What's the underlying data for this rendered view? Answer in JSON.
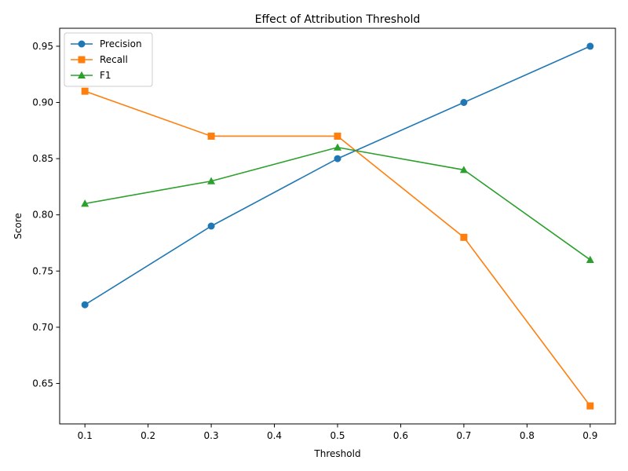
{
  "chart_data": {
    "type": "line",
    "title": "Effect of Attribution Threshold",
    "xlabel": "Threshold",
    "ylabel": "Score",
    "x": [
      0.1,
      0.3,
      0.5,
      0.7,
      0.9
    ],
    "xlim": [
      0.06,
      0.94
    ],
    "ylim": [
      0.614,
      0.966
    ],
    "xticks": [
      "0.1",
      "0.2",
      "0.3",
      "0.4",
      "0.5",
      "0.6",
      "0.7",
      "0.8",
      "0.9"
    ],
    "yticks": [
      "0.65",
      "0.70",
      "0.75",
      "0.80",
      "0.85",
      "0.90",
      "0.95"
    ],
    "grid": false,
    "legend_position": "top-left",
    "series": [
      {
        "name": "Precision",
        "values": [
          0.72,
          0.79,
          0.85,
          0.9,
          0.95
        ],
        "color": "#1f77b4",
        "marker": "circle"
      },
      {
        "name": "Recall",
        "values": [
          0.91,
          0.87,
          0.87,
          0.78,
          0.63
        ],
        "color": "#ff7f0e",
        "marker": "square"
      },
      {
        "name": "F1",
        "values": [
          0.81,
          0.83,
          0.86,
          0.84,
          0.76
        ],
        "color": "#2ca02c",
        "marker": "triangle"
      }
    ]
  }
}
